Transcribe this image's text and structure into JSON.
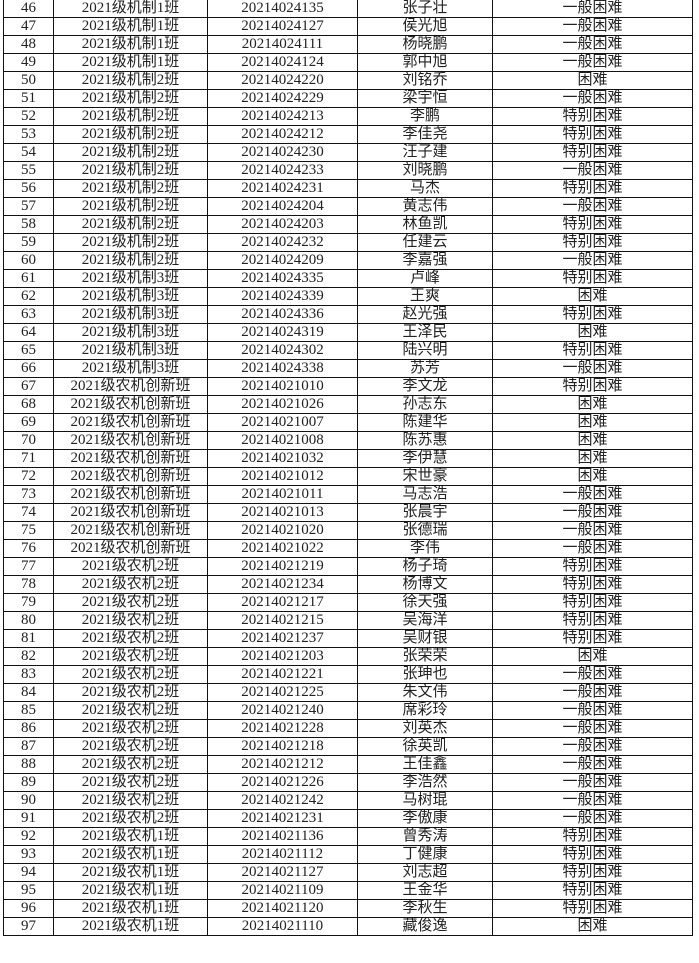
{
  "rows": [
    [
      "46",
      "2021级机制1班",
      "20214024135",
      "张子壮",
      "一般困难"
    ],
    [
      "47",
      "2021级机制1班",
      "20214024127",
      "侯光旭",
      "一般困难"
    ],
    [
      "48",
      "2021级机制1班",
      "20214024111",
      "杨晓鹏",
      "一般困难"
    ],
    [
      "49",
      "2021级机制1班",
      "20214024124",
      "郭中旭",
      "一般困难"
    ],
    [
      "50",
      "2021级机制2班",
      "20214024220",
      "刘铭乔",
      "困难"
    ],
    [
      "51",
      "2021级机制2班",
      "20214024229",
      "梁宇恒",
      "一般困难"
    ],
    [
      "52",
      "2021级机制2班",
      "20214024213",
      "李鹏",
      "特别困难"
    ],
    [
      "53",
      "2021级机制2班",
      "20214024212",
      "李佳尧",
      "特别困难"
    ],
    [
      "54",
      "2021级机制2班",
      "20214024230",
      "汪子建",
      "特别困难"
    ],
    [
      "55",
      "2021级机制2班",
      "20214024233",
      "刘晓鹏",
      "一般困难"
    ],
    [
      "56",
      "2021级机制2班",
      "20214024231",
      "马杰",
      "特别困难"
    ],
    [
      "57",
      "2021级机制2班",
      "20214024204",
      "黄志伟",
      "一般困难"
    ],
    [
      "58",
      "2021级机制2班",
      "20214024203",
      "林鱼凯",
      "特别困难"
    ],
    [
      "59",
      "2021级机制2班",
      "20214024232",
      "任建云",
      "特别困难"
    ],
    [
      "60",
      "2021级机制2班",
      "20214024209",
      "李嘉强",
      "一般困难"
    ],
    [
      "61",
      "2021级机制3班",
      "20214024335",
      "卢峰",
      "特别困难"
    ],
    [
      "62",
      "2021级机制3班",
      "20214024339",
      "王爽",
      "困难"
    ],
    [
      "63",
      "2021级机制3班",
      "20214024336",
      "赵光强",
      "特别困难"
    ],
    [
      "64",
      "2021级机制3班",
      "20214024319",
      "王泽民",
      "困难"
    ],
    [
      "65",
      "2021级机制3班",
      "20214024302",
      "陆兴明",
      "特别困难"
    ],
    [
      "66",
      "2021级机制3班",
      "20214024338",
      "苏芳",
      "一般困难"
    ],
    [
      "67",
      "2021级农机创新班",
      "20214021010",
      "李文龙",
      "特别困难"
    ],
    [
      "68",
      "2021级农机创新班",
      "20214021026",
      "孙志东",
      "困难"
    ],
    [
      "69",
      "2021级农机创新班",
      "20214021007",
      "陈建华",
      "困难"
    ],
    [
      "70",
      "2021级农机创新班",
      "20214021008",
      "陈苏惠",
      "困难"
    ],
    [
      "71",
      "2021级农机创新班",
      "20214021032",
      "李伊慧",
      "困难"
    ],
    [
      "72",
      "2021级农机创新班",
      "20214021012",
      "宋世豪",
      "困难"
    ],
    [
      "73",
      "2021级农机创新班",
      "20214021011",
      "马志浩",
      "一般困难"
    ],
    [
      "74",
      "2021级农机创新班",
      "20214021013",
      "张晨宇",
      "一般困难"
    ],
    [
      "75",
      "2021级农机创新班",
      "20214021020",
      "张德瑞",
      "一般困难"
    ],
    [
      "76",
      "2021级农机创新班",
      "20214021022",
      "李伟",
      "一般困难"
    ],
    [
      "77",
      "2021级农机2班",
      "20214021219",
      "杨子琦",
      "特别困难"
    ],
    [
      "78",
      "2021级农机2班",
      "20214021234",
      "杨博文",
      "特别困难"
    ],
    [
      "79",
      "2021级农机2班",
      "20214021217",
      "徐天强",
      "特别困难"
    ],
    [
      "80",
      "2021级农机2班",
      "20214021215",
      "吴海洋",
      "特别困难"
    ],
    [
      "81",
      "2021级农机2班",
      "20214021237",
      "吴财银",
      "特别困难"
    ],
    [
      "82",
      "2021级农机2班",
      "20214021203",
      "张荣荣",
      "困难"
    ],
    [
      "83",
      "2021级农机2班",
      "20214021221",
      "张珅也",
      "一般困难"
    ],
    [
      "84",
      "2021级农机2班",
      "20214021225",
      "朱文伟",
      "一般困难"
    ],
    [
      "85",
      "2021级农机2班",
      "20214021240",
      "席彩玲",
      "一般困难"
    ],
    [
      "86",
      "2021级农机2班",
      "20214021228",
      "刘英杰",
      "一般困难"
    ],
    [
      "87",
      "2021级农机2班",
      "20214021218",
      "徐英凯",
      "一般困难"
    ],
    [
      "88",
      "2021级农机2班",
      "20214021212",
      "王佳鑫",
      "一般困难"
    ],
    [
      "89",
      "2021级农机2班",
      "20214021226",
      "李浩然",
      "一般困难"
    ],
    [
      "90",
      "2021级农机2班",
      "20214021242",
      "马树琨",
      "一般困难"
    ],
    [
      "91",
      "2021级农机2班",
      "20214021231",
      "李傲康",
      "一般困难"
    ],
    [
      "92",
      "2021级农机1班",
      "20214021136",
      "曾秀涛",
      "特别困难"
    ],
    [
      "93",
      "2021级农机1班",
      "20214021112",
      "丁健康",
      "特别困难"
    ],
    [
      "94",
      "2021级农机1班",
      "20214021127",
      "刘志超",
      "特别困难"
    ],
    [
      "95",
      "2021级农机1班",
      "20214021109",
      "王金华",
      "特别困难"
    ],
    [
      "96",
      "2021级农机1班",
      "20214021120",
      "李秋生",
      "特别困难"
    ],
    [
      "97",
      "2021级农机1班",
      "20214021110",
      "藏俊逸",
      "困难"
    ]
  ]
}
